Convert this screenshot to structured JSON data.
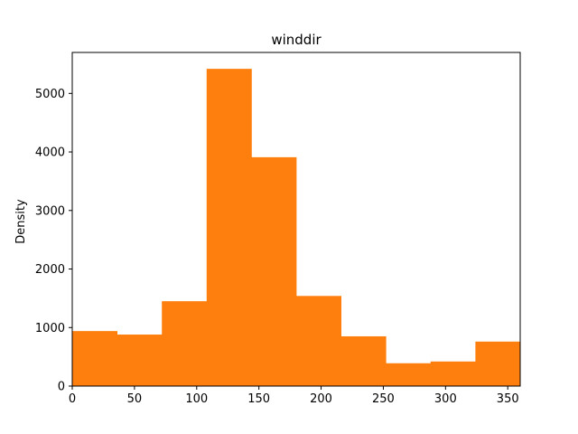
{
  "chart_data": {
    "type": "bar",
    "title": "winddir",
    "xlabel": "",
    "ylabel": "Density",
    "xlim": [
      0,
      360
    ],
    "ylim": [
      0,
      5700
    ],
    "grid": false,
    "bar_color": "#ff7f0e",
    "bin_edges": [
      0,
      36,
      72,
      108,
      144,
      180,
      216,
      252,
      288,
      324,
      360
    ],
    "values": [
      940,
      880,
      1450,
      5420,
      3910,
      1540,
      850,
      390,
      420,
      760
    ],
    "x_ticks": [
      0,
      50,
      100,
      150,
      200,
      250,
      300,
      350
    ],
    "y_ticks": [
      0,
      1000,
      2000,
      3000,
      4000,
      5000
    ]
  }
}
